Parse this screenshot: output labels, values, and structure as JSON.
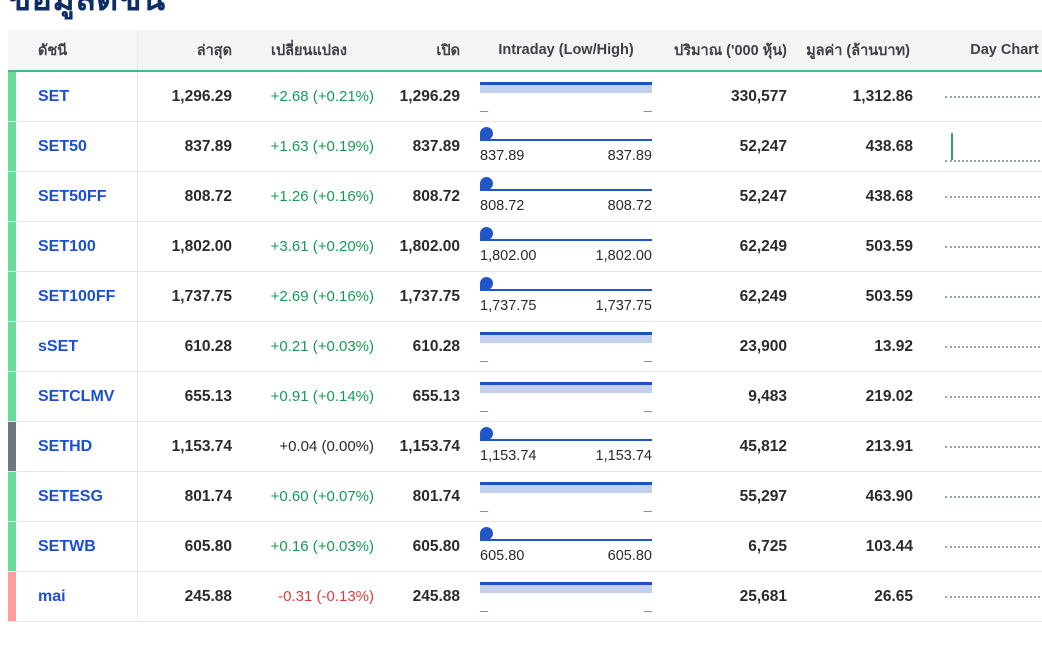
{
  "title": "ข้อมูลดัชนี",
  "colors": {
    "header_border_green": "#43bd81",
    "link_blue": "#1a4fd6",
    "positive_green": "#169b57",
    "negative_red": "#e13b3b",
    "stripe_green": "#6bdb9b",
    "stripe_gray": "#6e7681",
    "stripe_red": "#ff9d9d",
    "intraday_blue": "#2056c7",
    "intraday_light_blue": "#c3cfee",
    "sparkline_gray": "#97a1ac"
  },
  "icons": {
    "intraday_marker": "pin-icon",
    "day_chart_placeholder": "dotted-line"
  },
  "table": {
    "headers": [
      "ดัชนี",
      "ล่าสุด",
      "เปลี่ยนแปลง",
      "เปิด",
      "Intraday (Low/High)",
      "ปริมาณ ('000 หุ้น)",
      "มูลค่า (ล้านบาท)",
      "Day Chart"
    ],
    "rows": [
      {
        "name": "SET",
        "stripe": "green",
        "last": "1,296.29",
        "change": "+2.68 (+0.21%)",
        "change_dir": "up",
        "open": "1,296.29",
        "intraday": {
          "variant": "bar",
          "low": "_",
          "high": "_"
        },
        "volume": "330,577",
        "value": "1,312.86",
        "day_chart": "dotted"
      },
      {
        "name": "SET50",
        "stripe": "green",
        "last": "837.89",
        "change": "+1.63 (+0.19%)",
        "change_dir": "up",
        "open": "837.89",
        "intraday": {
          "variant": "pin",
          "low": "837.89",
          "high": "837.89"
        },
        "volume": "52,247",
        "value": "438.68",
        "day_chart": "spike"
      },
      {
        "name": "SET50FF",
        "stripe": "green",
        "last": "808.72",
        "change": "+1.26 (+0.16%)",
        "change_dir": "up",
        "open": "808.72",
        "intraday": {
          "variant": "pin",
          "low": "808.72",
          "high": "808.72"
        },
        "volume": "52,247",
        "value": "438.68",
        "day_chart": "dotted"
      },
      {
        "name": "SET100",
        "stripe": "green",
        "last": "1,802.00",
        "change": "+3.61 (+0.20%)",
        "change_dir": "up",
        "open": "1,802.00",
        "intraday": {
          "variant": "pin",
          "low": "1,802.00",
          "high": "1,802.00"
        },
        "volume": "62,249",
        "value": "503.59",
        "day_chart": "dotted"
      },
      {
        "name": "SET100FF",
        "stripe": "green",
        "last": "1,737.75",
        "change": "+2.69 (+0.16%)",
        "change_dir": "up",
        "open": "1,737.75",
        "intraday": {
          "variant": "pin",
          "low": "1,737.75",
          "high": "1,737.75"
        },
        "volume": "62,249",
        "value": "503.59",
        "day_chart": "dotted"
      },
      {
        "name": "sSET",
        "stripe": "green",
        "last": "610.28",
        "change": "+0.21 (+0.03%)",
        "change_dir": "up",
        "open": "610.28",
        "intraday": {
          "variant": "bar",
          "low": "_",
          "high": "_"
        },
        "volume": "23,900",
        "value": "13.92",
        "day_chart": "dotted"
      },
      {
        "name": "SETCLMV",
        "stripe": "green",
        "last": "655.13",
        "change": "+0.91 (+0.14%)",
        "change_dir": "up",
        "open": "655.13",
        "intraday": {
          "variant": "bar",
          "low": "_",
          "high": "_"
        },
        "volume": "9,483",
        "value": "219.02",
        "day_chart": "dotted"
      },
      {
        "name": "SETHD",
        "stripe": "gray",
        "last": "1,153.74",
        "change": "+0.04 (0.00%)",
        "change_dir": "flat",
        "open": "1,153.74",
        "intraday": {
          "variant": "pin",
          "low": "1,153.74",
          "high": "1,153.74"
        },
        "volume": "45,812",
        "value": "213.91",
        "day_chart": "dotted"
      },
      {
        "name": "SETESG",
        "stripe": "green",
        "last": "801.74",
        "change": "+0.60 (+0.07%)",
        "change_dir": "up",
        "open": "801.74",
        "intraday": {
          "variant": "bar",
          "low": "_",
          "high": "_"
        },
        "volume": "55,297",
        "value": "463.90",
        "day_chart": "dotted"
      },
      {
        "name": "SETWB",
        "stripe": "green",
        "last": "605.80",
        "change": "+0.16 (+0.03%)",
        "change_dir": "up",
        "open": "605.80",
        "intraday": {
          "variant": "pin",
          "low": "605.80",
          "high": "605.80"
        },
        "volume": "6,725",
        "value": "103.44",
        "day_chart": "dotted"
      },
      {
        "name": "mai",
        "stripe": "red",
        "last": "245.88",
        "change": "-0.31 (-0.13%)",
        "change_dir": "down",
        "open": "245.88",
        "intraday": {
          "variant": "bar",
          "low": "_",
          "high": "_"
        },
        "volume": "25,681",
        "value": "26.65",
        "day_chart": "dotted"
      }
    ]
  }
}
